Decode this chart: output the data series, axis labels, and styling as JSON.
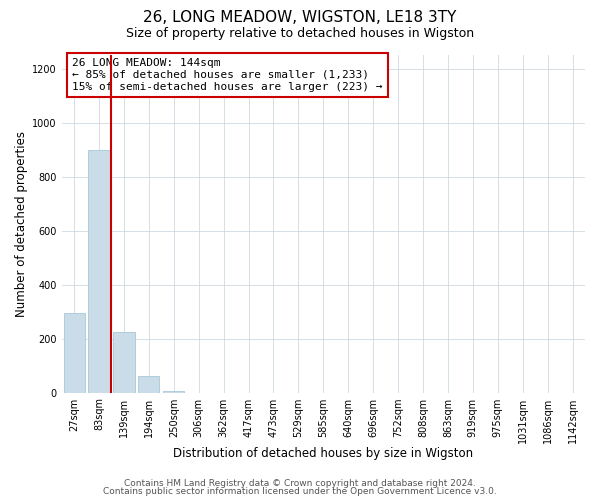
{
  "title": "26, LONG MEADOW, WIGSTON, LE18 3TY",
  "subtitle": "Size of property relative to detached houses in Wigston",
  "xlabel": "Distribution of detached houses by size in Wigston",
  "ylabel": "Number of detached properties",
  "bar_labels": [
    "27sqm",
    "83sqm",
    "139sqm",
    "194sqm",
    "250sqm",
    "306sqm",
    "362sqm",
    "417sqm",
    "473sqm",
    "529sqm",
    "585sqm",
    "640sqm",
    "696sqm",
    "752sqm",
    "808sqm",
    "863sqm",
    "919sqm",
    "975sqm",
    "1031sqm",
    "1086sqm",
    "1142sqm"
  ],
  "bar_values": [
    295,
    900,
    225,
    60,
    5,
    0,
    0,
    0,
    0,
    0,
    0,
    0,
    0,
    0,
    0,
    0,
    0,
    0,
    0,
    0,
    0
  ],
  "bar_color": "#c9dce8",
  "bar_edge_color": "#a8c8dc",
  "annotation_line1": "26 LONG MEADOW: 144sqm",
  "annotation_line2": "← 85% of detached houses are smaller (1,233)",
  "annotation_line3": "15% of semi-detached houses are larger (223) →",
  "annotation_box_color": "#cc0000",
  "annotation_box_fill": "#ffffff",
  "vline_color": "#cc0000",
  "ylim": [
    0,
    1250
  ],
  "yticks": [
    0,
    200,
    400,
    600,
    800,
    1000,
    1200
  ],
  "grid_color": "#cdd9e0",
  "bg_color": "#ffffff",
  "footer1": "Contains HM Land Registry data © Crown copyright and database right 2024.",
  "footer2": "Contains public sector information licensed under the Open Government Licence v3.0.",
  "title_fontsize": 11,
  "subtitle_fontsize": 9,
  "annotation_fontsize": 8,
  "axis_label_fontsize": 8.5,
  "tick_fontsize": 7,
  "footer_fontsize": 6.5
}
